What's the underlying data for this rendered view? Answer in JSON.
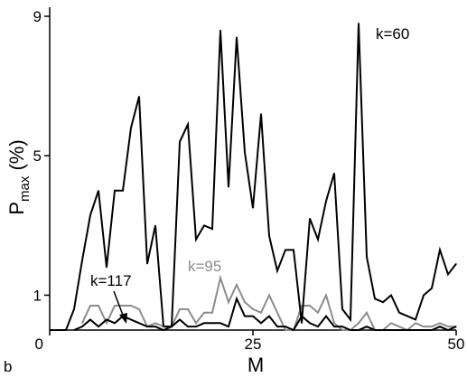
{
  "chart_data": {
    "type": "line",
    "panel_label": "b",
    "xlabel": "M",
    "ylabel": {
      "main": "P",
      "subscript": "max",
      "unit": " (%)"
    },
    "xlim": [
      0,
      50
    ],
    "ylim": [
      0,
      9
    ],
    "x_ticks": [
      0,
      25,
      50
    ],
    "y_ticks": [
      1,
      5,
      9
    ],
    "colors": {
      "black": "#000000",
      "gray": "#8c8c8c"
    },
    "series": [
      {
        "name": "k=60",
        "color": "#000000",
        "x": [
          0,
          1,
          2,
          3,
          4,
          5,
          6,
          7,
          8,
          9,
          10,
          11,
          12,
          13,
          14,
          15,
          16,
          17,
          18,
          19,
          20,
          21,
          22,
          23,
          24,
          25,
          26,
          27,
          28,
          29,
          30,
          31,
          32,
          33,
          34,
          35,
          36,
          37,
          38,
          39,
          40,
          41,
          42,
          43,
          44,
          45,
          46,
          47,
          48,
          49,
          50
        ],
        "y": [
          0,
          0,
          0,
          0.6,
          2,
          3.3,
          4,
          1.8,
          4,
          4,
          5.8,
          6.7,
          1.9,
          3,
          0.1,
          0.1,
          5.4,
          5.9,
          2.6,
          3,
          2.9,
          8.6,
          4.1,
          8.4,
          5.1,
          3.5,
          6.2,
          2.7,
          1.7,
          2.3,
          2.3,
          0.2,
          3.2,
          2.6,
          3.7,
          4.5,
          0.6,
          0.3,
          8.8,
          2.1,
          0.9,
          0.8,
          1,
          0.5,
          0.4,
          0.3,
          1,
          1.2,
          2.3,
          1.6,
          1.9
        ]
      },
      {
        "name": "k=95",
        "color": "#8c8c8c",
        "x": [
          4,
          5,
          6,
          7,
          8,
          9,
          10,
          11,
          12,
          13,
          14,
          15,
          16,
          17,
          18,
          19,
          20,
          21,
          22,
          23,
          24,
          25,
          26,
          27,
          28,
          29,
          30,
          31,
          32,
          33,
          34,
          35,
          36,
          37,
          38,
          39,
          40,
          41,
          42,
          43,
          44,
          45,
          46,
          47,
          48,
          49,
          50
        ],
        "y": [
          0.2,
          0.7,
          0.7,
          0.2,
          0.7,
          0.7,
          0.7,
          0.6,
          0.1,
          0.2,
          0.1,
          0.1,
          0.6,
          0.6,
          0.2,
          0.5,
          0.5,
          1.5,
          0.8,
          1.3,
          0.8,
          0.6,
          0.5,
          1,
          0.5,
          0,
          0,
          0.7,
          0.7,
          0.5,
          1,
          0.2,
          0,
          0,
          0.2,
          0.5,
          0,
          0,
          0.2,
          0.1,
          0,
          0.2,
          0.1,
          0.1,
          0.2,
          0.1,
          0.1
        ]
      },
      {
        "name": "k=117",
        "color": "#000000",
        "x": [
          3,
          4,
          5,
          6,
          7,
          8,
          9,
          10,
          11,
          12,
          13,
          14,
          15,
          16,
          17,
          18,
          19,
          20,
          21,
          22,
          23,
          24,
          25,
          26,
          27,
          28,
          29,
          30,
          31,
          32,
          33,
          34,
          35,
          36,
          37,
          38,
          39,
          40,
          41,
          42,
          43,
          44,
          45,
          46,
          47,
          48,
          49,
          50
        ],
        "y": [
          0,
          0.1,
          0.3,
          0.1,
          0.3,
          0.2,
          0.4,
          0.3,
          0.2,
          0.1,
          0.1,
          0,
          0.1,
          0.3,
          0.1,
          0.1,
          0.2,
          0.2,
          0.2,
          0.1,
          0.9,
          0.4,
          0.4,
          0.2,
          0.4,
          0.1,
          0.1,
          0,
          0.4,
          0.2,
          0.1,
          0.4,
          0.1,
          0.1,
          0,
          0,
          0.1,
          0,
          0,
          0,
          0,
          0,
          0,
          0,
          0,
          0.1,
          0,
          0.1
        ]
      }
    ],
    "annotations": [
      {
        "text": "k=60",
        "series": "k=60"
      },
      {
        "text": "k=95",
        "series": "k=95"
      },
      {
        "text": "k=117",
        "series": "k=117"
      }
    ]
  }
}
